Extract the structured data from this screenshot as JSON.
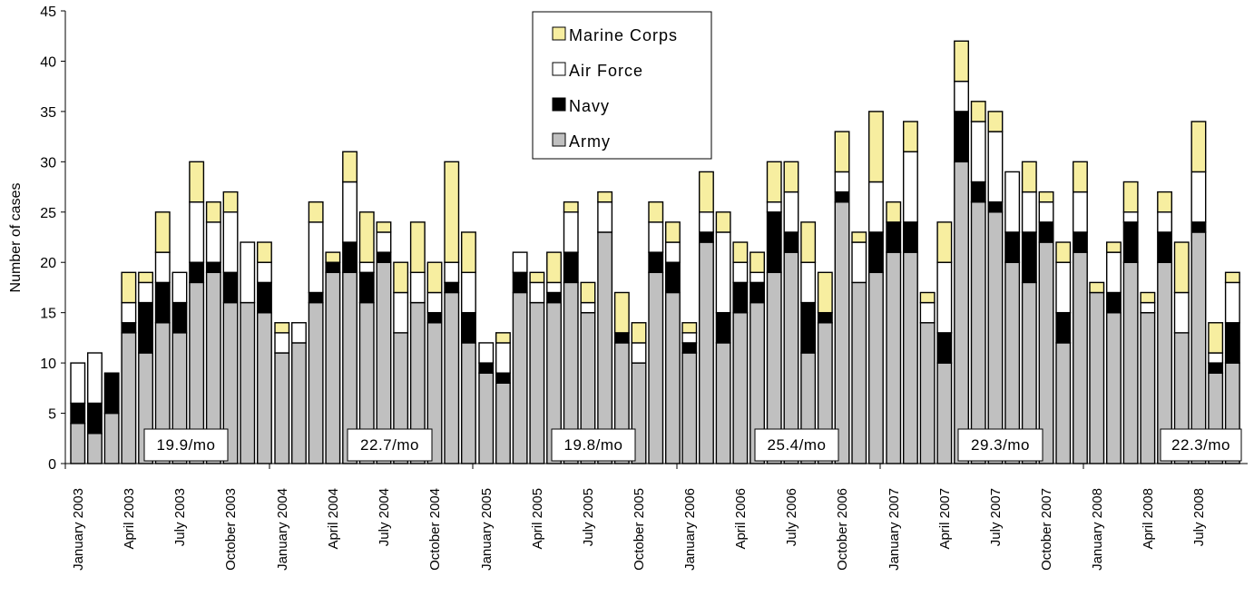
{
  "chart_data": {
    "type": "bar",
    "stacked": true,
    "title": "",
    "xlabel": "",
    "ylabel": "Number of cases",
    "ylim": [
      0,
      45
    ],
    "yticks": [
      0,
      5,
      10,
      15,
      20,
      25,
      30,
      35,
      40,
      45
    ],
    "grid": false,
    "legend_placement": "top-center",
    "legend": [
      "Marine Corps",
      "Air Force",
      "Navy",
      "Army"
    ],
    "colors": {
      "Army": "#c0c0c0",
      "Navy": "#000000",
      "Air Force": "#ffffff",
      "Marine Corps": "#f7eea0"
    },
    "groups": [
      {
        "year": "2003",
        "average_label": "19.9/mo",
        "months": [
          "January 2003",
          "February 2003",
          "March 2003",
          "April 2003",
          "May 2003",
          "June 2003",
          "July 2003",
          "August 2003",
          "September 2003",
          "October 2003",
          "November 2003",
          "December 2003"
        ],
        "tick_labels": [
          "January 2003",
          "",
          "",
          "April 2003",
          "",
          "",
          "July 2003",
          "",
          "",
          "October 2003",
          "",
          ""
        ],
        "Army": [
          4,
          3,
          5,
          13,
          11,
          14,
          13,
          18,
          19,
          16,
          16,
          15
        ],
        "Navy": [
          2,
          3,
          4,
          1,
          5,
          4,
          3,
          2,
          1,
          3,
          0,
          3
        ],
        "Air Force": [
          4,
          5,
          0,
          2,
          2,
          3,
          3,
          6,
          4,
          6,
          6,
          2
        ],
        "Marine Corps": [
          0,
          0,
          0,
          3,
          1,
          4,
          0,
          4,
          2,
          2,
          0,
          2
        ]
      },
      {
        "year": "2004",
        "average_label": "22.7/mo",
        "months": [
          "January 2004",
          "February 2004",
          "March 2004",
          "April 2004",
          "May 2004",
          "June 2004",
          "July 2004",
          "August 2004",
          "September 2004",
          "October 2004",
          "November 2004",
          "December 2004"
        ],
        "tick_labels": [
          "January 2004",
          "",
          "",
          "April 2004",
          "",
          "",
          "July 2004",
          "",
          "",
          "October 2004",
          "",
          ""
        ],
        "Army": [
          11,
          12,
          16,
          19,
          19,
          16,
          20,
          13,
          16,
          14,
          17,
          12
        ],
        "Navy": [
          0,
          0,
          1,
          1,
          3,
          3,
          1,
          0,
          0,
          1,
          1,
          3
        ],
        "Air Force": [
          2,
          2,
          7,
          0,
          6,
          1,
          2,
          4,
          3,
          2,
          2,
          4
        ],
        "Marine Corps": [
          1,
          0,
          2,
          1,
          3,
          5,
          1,
          3,
          5,
          3,
          10,
          4
        ]
      },
      {
        "year": "2005",
        "average_label": "19.8/mo",
        "months": [
          "January 2005",
          "February 2005",
          "March 2005",
          "April 2005",
          "May 2005",
          "June 2005",
          "July 2005",
          "August 2005",
          "September 2005",
          "October 2005",
          "November 2005",
          "December 2005"
        ],
        "tick_labels": [
          "January 2005",
          "",
          "",
          "April 2005",
          "",
          "",
          "July 2005",
          "",
          "",
          "October 2005",
          "",
          ""
        ],
        "Army": [
          9,
          8,
          17,
          16,
          16,
          18,
          15,
          23,
          12,
          10,
          19,
          17
        ],
        "Navy": [
          1,
          1,
          2,
          0,
          1,
          3,
          0,
          0,
          1,
          0,
          2,
          3
        ],
        "Air Force": [
          2,
          3,
          2,
          2,
          1,
          4,
          1,
          3,
          0,
          2,
          3,
          2
        ],
        "Marine Corps": [
          0,
          1,
          0,
          1,
          3,
          1,
          2,
          1,
          4,
          2,
          2,
          2
        ]
      },
      {
        "year": "2006",
        "average_label": "25.4/mo",
        "months": [
          "January 2006",
          "February 2006",
          "March 2006",
          "April 2006",
          "May 2006",
          "June 2006",
          "July 2006",
          "August 2006",
          "September 2006",
          "October 2006",
          "November 2006",
          "December 2006"
        ],
        "tick_labels": [
          "January 2006",
          "",
          "",
          "April 2006",
          "",
          "",
          "July 2006",
          "",
          "",
          "October 2006",
          "",
          ""
        ],
        "Army": [
          11,
          22,
          12,
          15,
          16,
          19,
          21,
          11,
          14,
          26,
          18,
          19
        ],
        "Navy": [
          1,
          1,
          3,
          3,
          2,
          6,
          2,
          5,
          1,
          1,
          0,
          4
        ],
        "Air Force": [
          1,
          2,
          8,
          2,
          1,
          1,
          4,
          4,
          0,
          2,
          4,
          5
        ],
        "Marine Corps": [
          1,
          4,
          2,
          2,
          2,
          4,
          3,
          4,
          4,
          4,
          1,
          7
        ]
      },
      {
        "year": "2007",
        "average_label": "29.3/mo",
        "months": [
          "January 2007",
          "February 2007",
          "March 2007",
          "April 2007",
          "May 2007",
          "June 2007",
          "July 2007",
          "August 2007",
          "September 2007",
          "October 2007",
          "November 2007",
          "December 2007"
        ],
        "tick_labels": [
          "January 2007",
          "",
          "",
          "April 2007",
          "",
          "",
          "July 2007",
          "",
          "",
          "October 2007",
          "",
          ""
        ],
        "Army": [
          21,
          21,
          14,
          10,
          30,
          26,
          25,
          20,
          18,
          22,
          12,
          21
        ],
        "Navy": [
          3,
          3,
          0,
          3,
          5,
          2,
          1,
          3,
          5,
          2,
          3,
          2
        ],
        "Air Force": [
          0,
          7,
          2,
          7,
          3,
          6,
          7,
          6,
          4,
          2,
          5,
          4
        ],
        "Marine Corps": [
          2,
          3,
          1,
          4,
          4,
          2,
          2,
          0,
          3,
          1,
          2,
          3
        ]
      },
      {
        "year": "2008",
        "average_label": "22.3/mo",
        "months": [
          "January 2008",
          "February 2008",
          "March 2008",
          "April 2008",
          "May 2008",
          "June 2008",
          "July 2008",
          "August 2008",
          "September 2008"
        ],
        "tick_labels": [
          "January 2008",
          "",
          "",
          "April 2008",
          "",
          "",
          "July 2008",
          "",
          ""
        ],
        "Army": [
          17,
          15,
          20,
          15,
          20,
          13,
          23,
          9,
          10
        ],
        "Navy": [
          0,
          2,
          4,
          0,
          3,
          0,
          1,
          1,
          4
        ],
        "Air Force": [
          0,
          4,
          1,
          1,
          2,
          4,
          5,
          1,
          4
        ],
        "Marine Corps": [
          1,
          1,
          3,
          1,
          2,
          5,
          5,
          3,
          1
        ]
      }
    ]
  }
}
